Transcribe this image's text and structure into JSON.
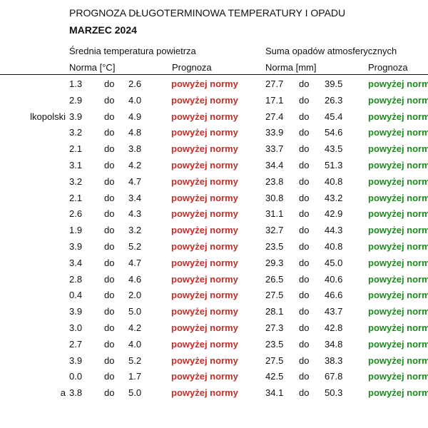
{
  "header": {
    "title": "PROGNOZA DŁUGOTERMINOWA TEMPERATURY I OPADU",
    "subtitle": "MARZEC 2024"
  },
  "groups": {
    "temperature": "Średnia temperatura powietrza",
    "precipitation": "Suma opadów atmosferycznych"
  },
  "columns": {
    "temp_norm": "Norma [°C]",
    "temp_forecast": "Prognoza",
    "prec_norm": "Norma [mm]",
    "prec_forecast": "Prognoza"
  },
  "colors": {
    "above_temp": "#c0302b",
    "above_precip": "#1f8a1f"
  },
  "rows": [
    {
      "region": "",
      "tmin": "1.3",
      "tdo": "do",
      "tmax": "2.6",
      "tfc": "powyżej normy",
      "pmin": "27.7",
      "pdo": "do",
      "pmax": "39.5",
      "pfc": "powyżej normy"
    },
    {
      "region": "",
      "tmin": "2.9",
      "tdo": "do",
      "tmax": "4.0",
      "tfc": "powyżej normy",
      "pmin": "17.1",
      "pdo": "do",
      "pmax": "26.3",
      "pfc": "powyżej normy"
    },
    {
      "region": "lkopolski",
      "tmin": "3.9",
      "tdo": "do",
      "tmax": "4.9",
      "tfc": "powyżej normy",
      "pmin": "27.4",
      "pdo": "do",
      "pmax": "45.4",
      "pfc": "powyżej normy"
    },
    {
      "region": "",
      "tmin": "3.2",
      "tdo": "do",
      "tmax": "4.8",
      "tfc": "powyżej normy",
      "pmin": "33.9",
      "pdo": "do",
      "pmax": "54.6",
      "pfc": "powyżej normy"
    },
    {
      "region": "",
      "tmin": "2.1",
      "tdo": "do",
      "tmax": "3.8",
      "tfc": "powyżej normy",
      "pmin": "33.7",
      "pdo": "do",
      "pmax": "43.5",
      "pfc": "powyżej normy"
    },
    {
      "region": "",
      "tmin": "3.1",
      "tdo": "do",
      "tmax": "4.2",
      "tfc": "powyżej normy",
      "pmin": "34.4",
      "pdo": "do",
      "pmax": "51.3",
      "pfc": "powyżej normy"
    },
    {
      "region": "",
      "tmin": "3.2",
      "tdo": "do",
      "tmax": "4.7",
      "tfc": "powyżej normy",
      "pmin": "23.8",
      "pdo": "do",
      "pmax": "40.8",
      "pfc": "powyżej normy"
    },
    {
      "region": "",
      "tmin": "2.1",
      "tdo": "do",
      "tmax": "3.4",
      "tfc": "powyżej normy",
      "pmin": "30.8",
      "pdo": "do",
      "pmax": "43.2",
      "pfc": "powyżej normy"
    },
    {
      "region": "",
      "tmin": "2.6",
      "tdo": "do",
      "tmax": "4.3",
      "tfc": "powyżej normy",
      "pmin": "31.1",
      "pdo": "do",
      "pmax": "42.9",
      "pfc": "powyżej normy"
    },
    {
      "region": "",
      "tmin": "1.9",
      "tdo": "do",
      "tmax": "3.2",
      "tfc": "powyżej normy",
      "pmin": "32.7",
      "pdo": "do",
      "pmax": "44.3",
      "pfc": "powyżej normy"
    },
    {
      "region": "",
      "tmin": "3.9",
      "tdo": "do",
      "tmax": "5.2",
      "tfc": "powyżej normy",
      "pmin": "23.5",
      "pdo": "do",
      "pmax": "40.8",
      "pfc": "powyżej normy"
    },
    {
      "region": "",
      "tmin": "3.4",
      "tdo": "do",
      "tmax": "4.7",
      "tfc": "powyżej normy",
      "pmin": "29.3",
      "pdo": "do",
      "pmax": "45.0",
      "pfc": "powyżej normy"
    },
    {
      "region": "",
      "tmin": "2.8",
      "tdo": "do",
      "tmax": "4.6",
      "tfc": "powyżej normy",
      "pmin": "26.5",
      "pdo": "do",
      "pmax": "40.6",
      "pfc": "powyżej normy"
    },
    {
      "region": "",
      "tmin": "0.4",
      "tdo": "do",
      "tmax": "2.0",
      "tfc": "powyżej normy",
      "pmin": "27.5",
      "pdo": "do",
      "pmax": "46.6",
      "pfc": "powyżej normy"
    },
    {
      "region": "",
      "tmin": "3.9",
      "tdo": "do",
      "tmax": "5.0",
      "tfc": "powyżej normy",
      "pmin": "28.1",
      "pdo": "do",
      "pmax": "43.7",
      "pfc": "powyżej normy"
    },
    {
      "region": "",
      "tmin": "3.0",
      "tdo": "do",
      "tmax": "4.2",
      "tfc": "powyżej normy",
      "pmin": "27.3",
      "pdo": "do",
      "pmax": "42.8",
      "pfc": "powyżej normy"
    },
    {
      "region": "",
      "tmin": "2.7",
      "tdo": "do",
      "tmax": "4.0",
      "tfc": "powyżej normy",
      "pmin": "23.5",
      "pdo": "do",
      "pmax": "34.8",
      "pfc": "powyżej normy"
    },
    {
      "region": "",
      "tmin": "3.9",
      "tdo": "do",
      "tmax": "5.2",
      "tfc": "powyżej normy",
      "pmin": "27.5",
      "pdo": "do",
      "pmax": "38.3",
      "pfc": "powyżej normy"
    },
    {
      "region": "",
      "tmin": "0.0",
      "tdo": "do",
      "tmax": "1.7",
      "tfc": "powyżej normy",
      "pmin": "42.5",
      "pdo": "do",
      "pmax": "67.8",
      "pfc": "powyżej normy"
    },
    {
      "region": "a",
      "tmin": "3.8",
      "tdo": "do",
      "tmax": "5.0",
      "tfc": "powyżej normy",
      "pmin": "34.1",
      "pdo": "do",
      "pmax": "50.3",
      "pfc": "powyżej normy"
    }
  ]
}
